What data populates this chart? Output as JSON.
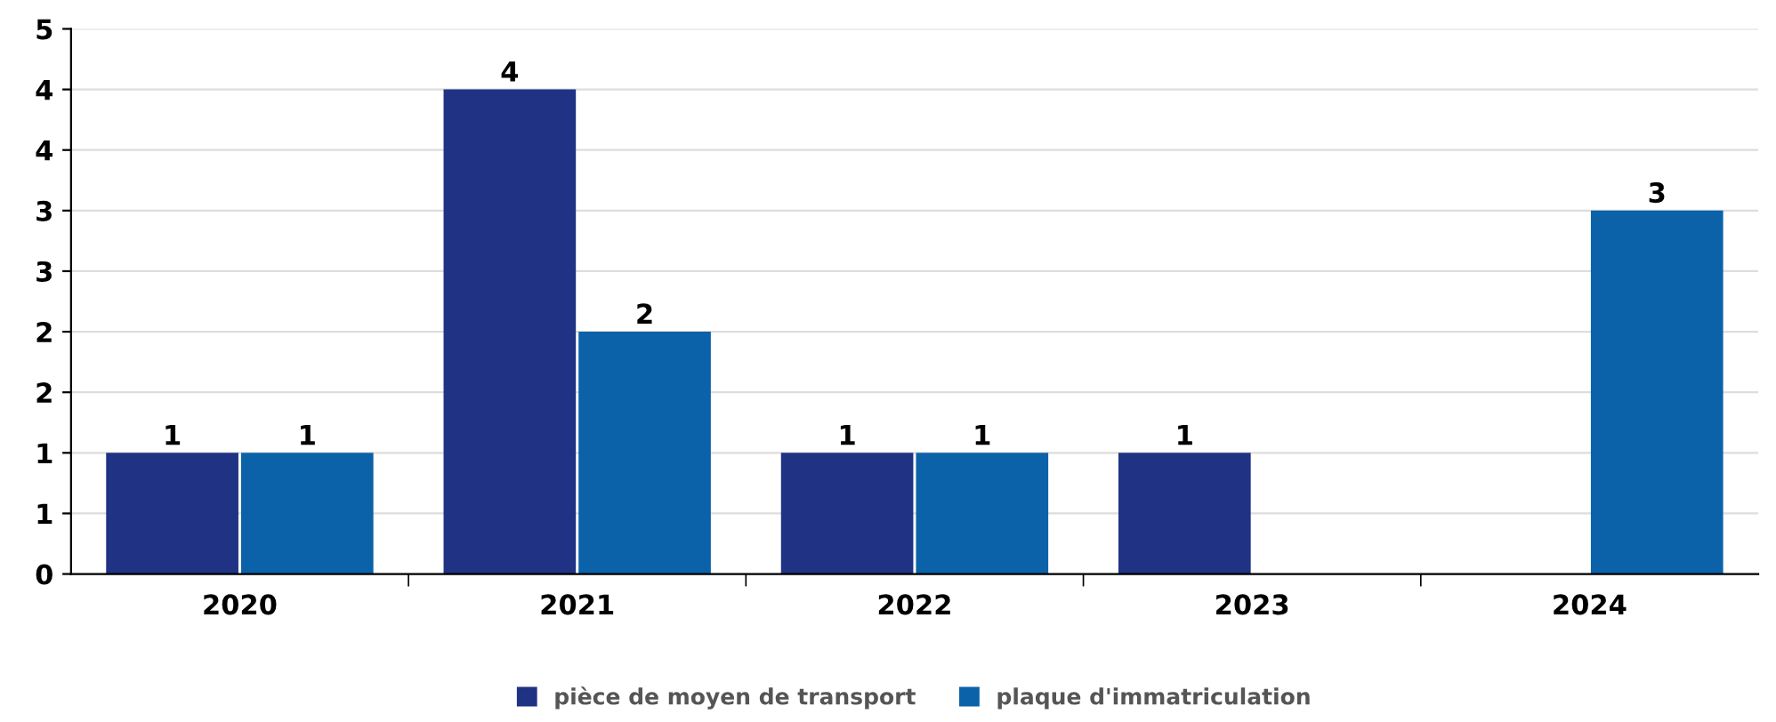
{
  "chart_data": {
    "type": "bar",
    "categories": [
      "2020",
      "2021",
      "2022",
      "2023",
      "2024"
    ],
    "series": [
      {
        "name": "pièce de moyen de transport",
        "color": "#1f3283",
        "values": [
          1,
          4,
          1,
          1,
          null
        ]
      },
      {
        "name": "plaque d'immatriculation",
        "color": "#0b62a8",
        "values": [
          1,
          2,
          1,
          null,
          3
        ]
      }
    ],
    "ylim": [
      0,
      4.5
    ],
    "yticks": [
      0,
      {
        "value": 0.5,
        "label": "1"
      },
      1,
      {
        "value": 1.5,
        "label": "2"
      },
      2,
      {
        "value": 2.5,
        "label": "3"
      },
      3,
      {
        "value": 3.5,
        "label": "4"
      },
      4,
      {
        "value": 4.5,
        "label": "5"
      }
    ],
    "grid": "y",
    "legend": "bottom",
    "data_labels": true
  }
}
